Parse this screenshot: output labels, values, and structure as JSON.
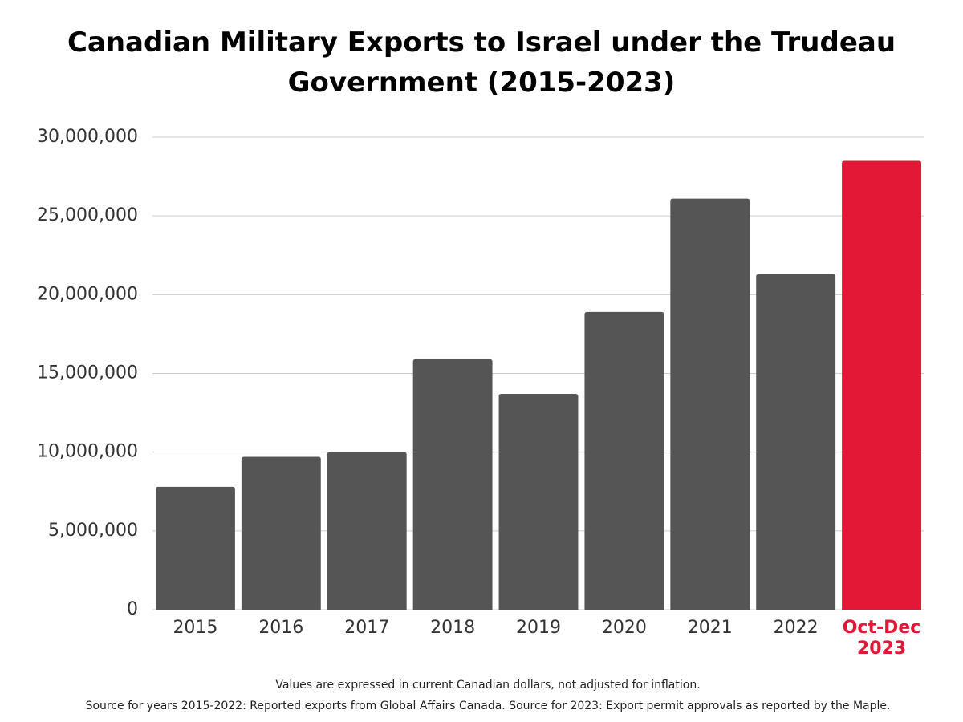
{
  "chart_data": {
    "type": "bar",
    "title": "Canadian Military Exports to Israel under the Trudeau Government (2015-2023)",
    "categories": [
      "2015",
      "2016",
      "2017",
      "2018",
      "2019",
      "2020",
      "2021",
      "2022",
      "Oct-Dec 2023"
    ],
    "values": [
      7800000,
      9700000,
      10000000,
      15900000,
      13700000,
      18900000,
      26100000,
      21300000,
      28500000
    ],
    "colors": [
      "#555555",
      "#555555",
      "#555555",
      "#555555",
      "#555555",
      "#555555",
      "#555555",
      "#555555",
      "#e31837"
    ],
    "ylim": [
      0,
      30000000
    ],
    "yticks": [
      0,
      {
        "value": 5000000,
        "label": "5,000,000"
      },
      {
        "value": 10000000,
        "label": "10,000,000"
      },
      {
        "value": 15000000,
        "label": "15,000,000"
      },
      {
        "value": 20000000,
        "label": "20,000,000"
      },
      {
        "value": 25000000,
        "label": "25,000,000"
      },
      {
        "value": 30000000,
        "label": "30,000,000"
      }
    ],
    "grid": true,
    "notes": [
      "Values are expressed in current Canadian dollars, not adjusted for inflation.",
      "Source for years 2015-2022: Reported exports from Global Affairs Canada. Source for 2023: Export permit approvals as reported by the Maple."
    ]
  }
}
